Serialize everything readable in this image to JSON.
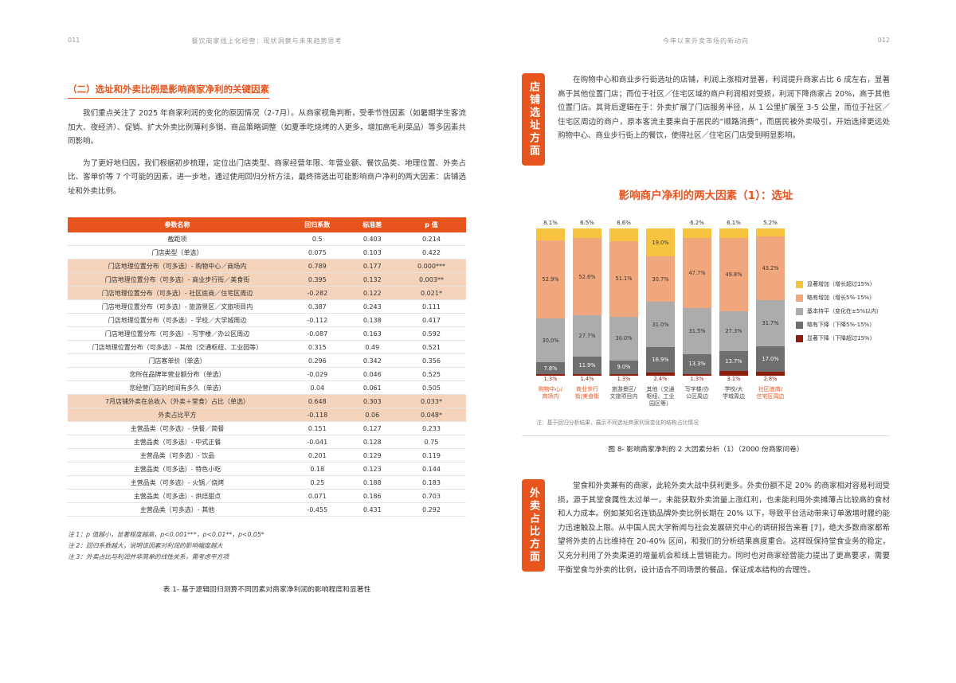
{
  "accent_color": "#E8541E",
  "left_page": {
    "page_number": "011",
    "header_title": "餐饮商家线上化经营：现状洞察与未来趋势思考",
    "section_title": "（二）选址和外卖比例是影响商家净利的关键因素",
    "paragraphs": [
      "我们重点关注了 2025 年商家利润的变化的原因情况（2-7月）。从商家视角判断，受季节性因素（如暑期学生客流加大、夜经济）、促销、扩大外卖比例薄利多销、商品策略调整（如夏季吃烧烤的人更多，增加高毛利菜品）等多因素共同影响。",
      "为了更好地归因，我们根据初步梳理，定位出门店类型、商家经营年限、年营业额、餐饮品类、地理位置、外卖占比、客单价等 7 个可能的因素，进一步地，通过使用回归分析方法，最终筛选出可能影响商户净利的两大因素：店铺选址和外卖比例。"
    ],
    "table": {
      "headers": [
        "参数名称",
        "回归系数",
        "标准差",
        "p 值"
      ],
      "rows": [
        {
          "name": "截距项",
          "coef": "0.5",
          "std": "0.403",
          "p": "0.214",
          "highlight": false
        },
        {
          "name": "门店类型（单选）",
          "coef": "0.075",
          "std": "0.103",
          "p": "0.422",
          "highlight": false
        },
        {
          "name": "门店地理位置分布（可多选）- 购物中心／商场内",
          "coef": "0.789",
          "std": "0.177",
          "p": "0.000***",
          "highlight": true
        },
        {
          "name": "门店地理位置分布（可多选）- 商业步行街／美食街",
          "coef": "0.395",
          "std": "0.132",
          "p": "0.003**",
          "highlight": true
        },
        {
          "name": "门店地理位置分布（可多选）- 社区底商／住宅区周边",
          "coef": "-0.282",
          "std": "0.122",
          "p": "0.021*",
          "highlight": true
        },
        {
          "name": "门店地理位置分布（可多选）- 旅游景区／文旅项目内",
          "coef": "0.387",
          "std": "0.243",
          "p": "0.111",
          "highlight": false
        },
        {
          "name": "门店地理位置分布（可多选）- 学校／大学城周边",
          "coef": "-0.112",
          "std": "0.138",
          "p": "0.417",
          "highlight": false
        },
        {
          "name": "门店地理位置分布（可多选）- 写字楼／办公区周边",
          "coef": "-0.087",
          "std": "0.163",
          "p": "0.592",
          "highlight": false
        },
        {
          "name": "门店地理位置分布（可多选）- 其他（交通枢纽、工业园等）",
          "coef": "0.315",
          "std": "0.49",
          "p": "0.521",
          "highlight": false
        },
        {
          "name": "门店客单价（单选）",
          "coef": "0.296",
          "std": "0.342",
          "p": "0.356",
          "highlight": false
        },
        {
          "name": "您所在品牌年营业额分布（单选）",
          "coef": "-0.029",
          "std": "0.046",
          "p": "0.525",
          "highlight": false
        },
        {
          "name": "您经营门店的时间有多久（单选）",
          "coef": "0.04",
          "std": "0.061",
          "p": "0.505",
          "highlight": false
        },
        {
          "name": "7月店铺外卖在总收入（外卖＋堂食）占比（单选）",
          "coef": "0.648",
          "std": "0.303",
          "p": "0.033*",
          "highlight": true
        },
        {
          "name": "外卖占比平方",
          "coef": "-0.118",
          "std": "0.06",
          "p": "0.048*",
          "highlight": true
        },
        {
          "name": "主营品类（可多选）- 快餐／简餐",
          "coef": "0.151",
          "std": "0.127",
          "p": "0.233",
          "highlight": false
        },
        {
          "name": "主营品类（可多选）- 中式正餐",
          "coef": "-0.041",
          "std": "0.128",
          "p": "0.75",
          "highlight": false
        },
        {
          "name": "主营品类（可多选）- 饮品",
          "coef": "0.201",
          "std": "0.129",
          "p": "0.119",
          "highlight": false
        },
        {
          "name": "主营品类（可多选）- 特色小吃",
          "coef": "0.18",
          "std": "0.123",
          "p": "0.144",
          "highlight": false
        },
        {
          "name": "主营品类（可多选）- 火锅／烧烤",
          "coef": "0.25",
          "std": "0.188",
          "p": "0.183",
          "highlight": false
        },
        {
          "name": "主营品类（可多选）- 烘焙甜点",
          "coef": "0.071",
          "std": "0.186",
          "p": "0.703",
          "highlight": false
        },
        {
          "name": "主营品类（可多选）- 其他",
          "coef": "-0.455",
          "std": "0.431",
          "p": "0.292",
          "highlight": false
        }
      ]
    },
    "notes": [
      "注 1：p 值越小，显著程度越高，p<0.001***，p<0.01**，p<0.05*",
      "注 2：回归系数越大，说明该因素对利润的影响幅度越大",
      "注 3：外卖占比与利润并非简单的线性关系，需考虑平方项"
    ],
    "caption": "表 1- 基于逻辑回归测算不同因素对商家净利润的影响程度和显著性"
  },
  "right_page": {
    "page_number": "012",
    "header_title": "今年以来外卖市场的新动向",
    "section1_tag": "店铺选址方面",
    "section1_text": "在购物中心和商业步行街选址的店铺，利润上涨相对显著，利润提升商家占比 6 成左右，显著高于其他位置门店；而位于社区／住宅区域的商户利润相对受损，利润下降商家占 20%，高于其他位置门店。其背后逻辑在于：外卖扩展了门店服务半径，从 1 公里扩展至 3-5 公里，而位于社区／住宅区周边的商户，原本客流主要来自于居民的“顺路消费”，而居民被外卖吸引，开始选择更远处购物中心、商业步行街上的餐饮，使得社区／住宅区门店受到明显影响。",
    "chart_title": "影响商户净利的两大因素（1）：选址",
    "chart_note": "注：基于回归分析结果，展示不同选址商家利润变化的结构占比情况",
    "chart_caption": "图 8- 影响商家净利的 2 大因素分析（1）（2000 份商家问卷）",
    "section2_tag": "外卖占比方面",
    "section2_text": "堂食和外卖兼有的商家，此轮外卖大战中获利更多。外卖份额不足 20% 的商家相对容易利润受损，源于其堂食属性太过单一，未能获取外卖流量上涨红利，也未能利用外卖摊薄占比较高的食材和人力成本。例如某知名连锁品牌外卖比例长期在 20% 以下，导致平台活动带来订单激增时履约能力迅速触及上限。从中国人民大学新闻与社会发展研究中心的调研报告来看 [7]，绝大多数商家都希望将外卖的占比维持在 20-40% 区间，和我们的分析结果高度重合。这样既保持堂食业务的稳定，又充分利用了外卖渠道的增量机会和线上营销能力。同时也对商家经营能力提出了更高要求，需要平衡堂食与外卖的比例，设计适合不同场景的餐品，保证成本结构的合理性。"
  },
  "chart_data": {
    "type": "bar",
    "stacked": true,
    "title": "影响商户净利的两大因素（1）：选址",
    "ylim": [
      0,
      100
    ],
    "legend_position": "right",
    "categories": [
      "购物中心/\n商场内",
      "商业步行\n街/美食街",
      "旅游景区/\n文旅项目内",
      "其他（交通\n枢纽、工业\n园区等）",
      "写字楼/办\n公区周边",
      "学校/大\n学城周边",
      "社区底商/\n住宅区周边"
    ],
    "category_highlight": [
      true,
      true,
      false,
      false,
      false,
      false,
      true
    ],
    "series": [
      {
        "name": "显著增加（增长超过15%）",
        "color": "#F8C440",
        "values": [
          8.1,
          6.5,
          8.6,
          19.0,
          6.2,
          6.1,
          5.2
        ]
      },
      {
        "name": "略有增加（增长5%-15%）",
        "color": "#F0A77D",
        "values": [
          52.9,
          52.6,
          51.1,
          30.7,
          47.7,
          49.8,
          43.2
        ]
      },
      {
        "name": "基本持平（变化在±5%以内）",
        "color": "#ACACAC",
        "values": [
          30.0,
          27.7,
          30.0,
          31.0,
          31.5,
          27.3,
          31.7
        ]
      },
      {
        "name": "略有下降（下降5%-15%）",
        "color": "#6F6F6F",
        "values": [
          7.8,
          11.9,
          9.0,
          16.9,
          13.3,
          13.7,
          17.0
        ]
      },
      {
        "name": "显著下降（下降超过15%）",
        "color": "#8C1D0E",
        "values": [
          1.3,
          1.4,
          1.3,
          2.4,
          1.3,
          3.1,
          2.8
        ]
      }
    ]
  }
}
